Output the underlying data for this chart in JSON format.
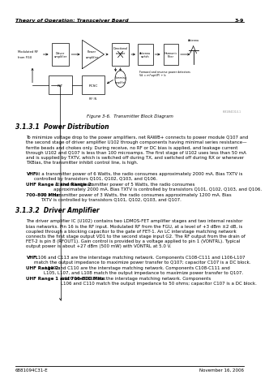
{
  "bg_color": "#ffffff",
  "header_left": "Theory of Operation: Transceiver Board",
  "header_right": "3-9",
  "footer_left": "6881094C31-E",
  "footer_right": "November 16, 2006",
  "figure_caption": "Figure 3-6.  Transmitter Block Diagram",
  "figure_note": "6881094C31-E-1",
  "section1_title": "3.1.3.1  Power Distribution",
  "section1_body": "To minimize voltage drop to the power amplifiers, net RAWB+ connects to power module Q107 and\nthe second stage of driver amplifier U102 through components having minimal series resistance—\nferrite beads and chokes only. During receive, no RF or DC bias is applied, and leakage current\nthrough U102 and Q107 is less than 100 microamps. The first stage of U102 uses less than 50 mA\nand is supplied by TXTV, which is switched off during TX, and switched off during RX or whenever\nTXBias, the transmitter inhibit control line, is high.",
  "section1_vhf": "VHF:",
  "section1_vhf_text": " At a transmitter power of 6 Watts, the radio consumes approximately 2000 mA. Bias TXTV is\ncontrolled by transistors Q101, Q102, Q103, and Q106.",
  "section1_uhf": "UHF Range 1 and Range 2:",
  "section1_uhf_text": " At the rated transmitter power of 5 Watts, the radio consumes\napproximately 2000 mA. Bias TXTV is controlled by transistors Q101, Q102, Q103, and Q106.",
  "section1_700": "700–800 MHz:",
  "section1_700_text": " At a transmitter power of 3 Watts, the radio consumes approximately 1200 mA. Bias\nTXTV is controlled by transistors Q101, Q102, Q103, and Q107.",
  "section2_title": "3.1.3.2  Driver Amplifier",
  "section2_body": "The driver amplifier IC (U102) contains two LDMOS-FET amplifier stages and two internal resistor\nbias networks. Pin 16 is the RF input. Modulated RF from the FGU, at a level of +3 dBm ±2 dB, is\ncoupled through a blocking capacitor to the gate of FET-1. An LC interstage matching network\nconnects the first stage output VD1 to the second stage input G2. The RF output from the drain of\nFET-2 is pin 8 (RFOUT1). Gain control is provided by a voltage applied to pin 1 (VONTRL). Typical\noutput power is about +27 dBm (500 mW) with VONTRL at 5.0 V.",
  "section2_vhf": "VHF:",
  "section2_vhf_text": " L106 and C113 are the interstage matching network. Components C108-C111 and L106-L107\nmatch the output impedance to maximize power transfer to Q107; capacitor C107 is a DC block.",
  "section2_uhfr2": "UHF Range 2:",
  "section2_uhfr2_text": " L109 and C110 are the interstage matching network. Components C108-C111 and\nL105, L107, and L108 match the output impedance to maximize power transfer to Q107.",
  "section2_uhf1_700": "UHF Range 1 and 700–800 MHz:",
  "section2_uhf1_700_text": " L109 and C110 are the interstage matching network. Components\nL106 and C110 match the output impedance to 50 ohms; capacitor C107 is a DC block.",
  "text_color": "#000000",
  "fs_header": 4.5,
  "fs_body": 4.0,
  "fs_title": 5.5,
  "fs_diagram": 3.0,
  "fs_footer": 4.0,
  "fs_caption": 4.0
}
